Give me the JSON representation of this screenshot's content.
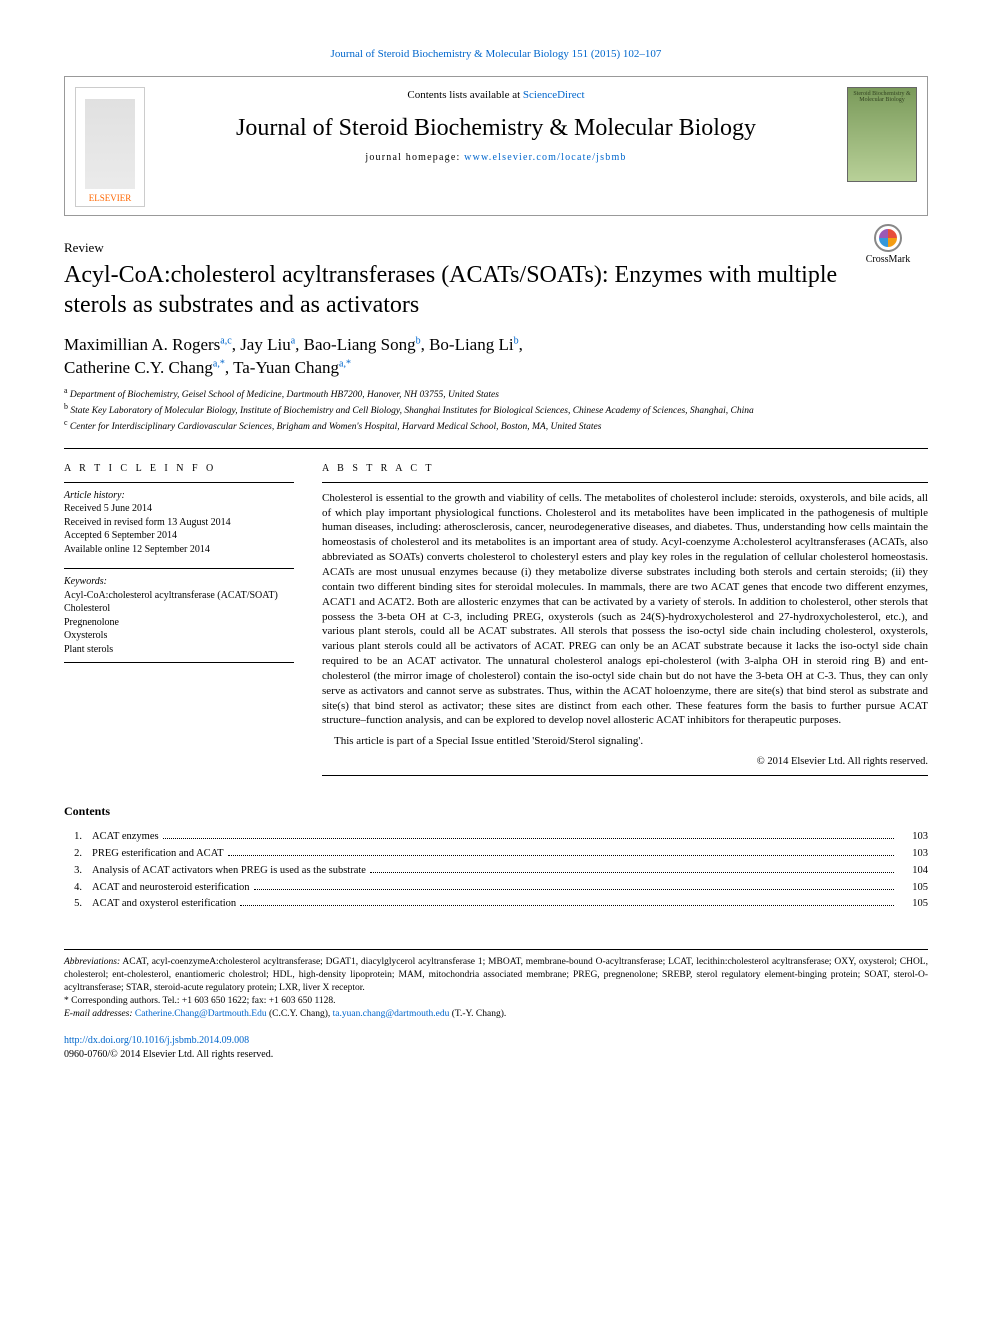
{
  "citation": "Journal of Steroid Biochemistry & Molecular Biology 151 (2015) 102–107",
  "header": {
    "contents_prefix": "Contents lists available at ",
    "contents_link": "ScienceDirect",
    "journal_title": "Journal of Steroid Biochemistry & Molecular Biology",
    "homepage_prefix": "journal homepage: ",
    "homepage_url": "www.elsevier.com/locate/jsbmb",
    "publisher": "ELSEVIER",
    "cover_text": "Steroid Biochemistry & Molecular Biology"
  },
  "article": {
    "type": "Review",
    "title": "Acyl-CoA:cholesterol acyltransferases (ACATs/SOATs): Enzymes with multiple sterols as substrates and as activators",
    "crossmark": "CrossMark"
  },
  "authors": {
    "a1_name": "Maximillian A. Rogers",
    "a1_sup": "a,c",
    "a2_name": "Jay Liu",
    "a2_sup": "a",
    "a3_name": "Bao-Liang Song",
    "a3_sup": "b",
    "a4_name": "Bo-Liang Li",
    "a4_sup": "b",
    "a5_name": "Catherine C.Y. Chang",
    "a5_sup": "a,*",
    "a6_name": "Ta-Yuan Chang",
    "a6_sup": "a,*"
  },
  "affiliations": {
    "a": "Department of Biochemistry, Geisel School of Medicine, Dartmouth HB7200, Hanover, NH 03755, United States",
    "b": "State Key Laboratory of Molecular Biology, Institute of Biochemistry and Cell Biology, Shanghai Institutes for Biological Sciences, Chinese Academy of Sciences, Shanghai, China",
    "c": "Center for Interdisciplinary Cardiovascular Sciences, Brigham and Women's Hospital, Harvard Medical School, Boston, MA, United States"
  },
  "info": {
    "label": "A R T I C L E   I N F O",
    "history_label": "Article history:",
    "received": "Received 5 June 2014",
    "revised": "Received in revised form 13 August 2014",
    "accepted": "Accepted 6 September 2014",
    "online": "Available online 12 September 2014",
    "keywords_label": "Keywords:",
    "k1": "Acyl-CoA:cholesterol acyltransferase (ACAT/SOAT)",
    "k2": "Cholesterol",
    "k3": "Pregnenolone",
    "k4": "Oxysterols",
    "k5": "Plant sterols"
  },
  "abstract": {
    "label": "A B S T R A C T",
    "body": "Cholesterol is essential to the growth and viability of cells. The metabolites of cholesterol include: steroids, oxysterols, and bile acids, all of which play important physiological functions. Cholesterol and its metabolites have been implicated in the pathogenesis of multiple human diseases, including: atherosclerosis, cancer, neurodegenerative diseases, and diabetes. Thus, understanding how cells maintain the homeostasis of cholesterol and its metabolites is an important area of study. Acyl-coenzyme A:cholesterol acyltransferases (ACATs, also abbreviated as SOATs) converts cholesterol to cholesteryl esters and play key roles in the regulation of cellular cholesterol homeostasis. ACATs are most unusual enzymes because (i) they metabolize diverse substrates including both sterols and certain steroids; (ii) they contain two different binding sites for steroidal molecules. In mammals, there are two ACAT genes that encode two different enzymes, ACAT1 and ACAT2. Both are allosteric enzymes that can be activated by a variety of sterols. In addition to cholesterol, other sterols that possess the 3-beta OH at C-3, including PREG, oxysterols (such as 24(S)-hydroxycholesterol and 27-hydroxycholesterol, etc.), and various plant sterols, could all be ACAT substrates. All sterols that possess the iso-octyl side chain including cholesterol, oxysterols, various plant sterols could all be activators of ACAT. PREG can only be an ACAT substrate because it lacks the iso-octyl side chain required to be an ACAT activator. The unnatural cholesterol analogs epi-cholesterol (with 3-alpha OH in steroid ring B) and ent-cholesterol (the mirror image of cholesterol) contain the iso-octyl side chain but do not have the 3-beta OH at C-3. Thus, they can only serve as activators and cannot serve as substrates. Thus, within the ACAT holoenzyme, there are site(s) that bind sterol as substrate and site(s) that bind sterol as activator; these sites are distinct from each other. These features form the basis to further pursue ACAT structure–function analysis, and can be explored to develop novel allosteric ACAT inhibitors for therapeutic purposes.",
    "special": "This article is part of a Special Issue entitled 'Steroid/Sterol signaling'.",
    "copyright": "© 2014 Elsevier Ltd. All rights reserved."
  },
  "contents": {
    "heading": "Contents",
    "items": [
      {
        "num": "1.",
        "title": "ACAT enzymes",
        "page": "103"
      },
      {
        "num": "2.",
        "title": "PREG esterification and ACAT",
        "page": "103"
      },
      {
        "num": "3.",
        "title": "Analysis of ACAT activators when PREG is used as the substrate",
        "page": "104"
      },
      {
        "num": "4.",
        "title": "ACAT and neurosteroid esterification",
        "page": "105"
      },
      {
        "num": "5.",
        "title": "ACAT and oxysterol esterification",
        "page": "105"
      }
    ]
  },
  "footnotes": {
    "abbrev_label": "Abbreviations:",
    "abbrev_text": " ACAT, acyl-coenzymeA:cholesterol acyltransferase; DGAT1, diacylglycerol acyltransferase 1; MBOAT, membrane-bound O-acyltransferase; LCAT, lecithin:cholesterol acyltransferase; OXY, oxysterol; CHOL, cholesterol; ent-cholesterol, enantiomeric cholestrol; HDL, high-density lipoprotein; MAM, mitochondria associated membrane; PREG, pregnenolone; SREBP, sterol regulatory element-binging protein; SOAT, sterol-O-acyltransferase; STAR, steroid-acute regulatory protein; LXR, liver X receptor.",
    "corresponding": "* Corresponding authors. Tel.: +1 603 650 1622; fax: +1 603 650 1128.",
    "email_label": "E-mail addresses: ",
    "email1": "Catherine.Chang@Dartmouth.Edu",
    "email1_name": " (C.C.Y. Chang), ",
    "email2": "ta.yuan.chang@dartmouth.edu",
    "email2_name": " (T.-Y. Chang)."
  },
  "doi": {
    "url": "http://dx.doi.org/10.1016/j.jsbmb.2014.09.008",
    "issn_line": "0960-0760/© 2014 Elsevier Ltd. All rights reserved."
  },
  "colors": {
    "link": "#0066cc",
    "text": "#000000",
    "elsevier_orange": "#ff6600",
    "cover_green_dark": "#7a9a5a",
    "cover_green_light": "#b8d098"
  }
}
